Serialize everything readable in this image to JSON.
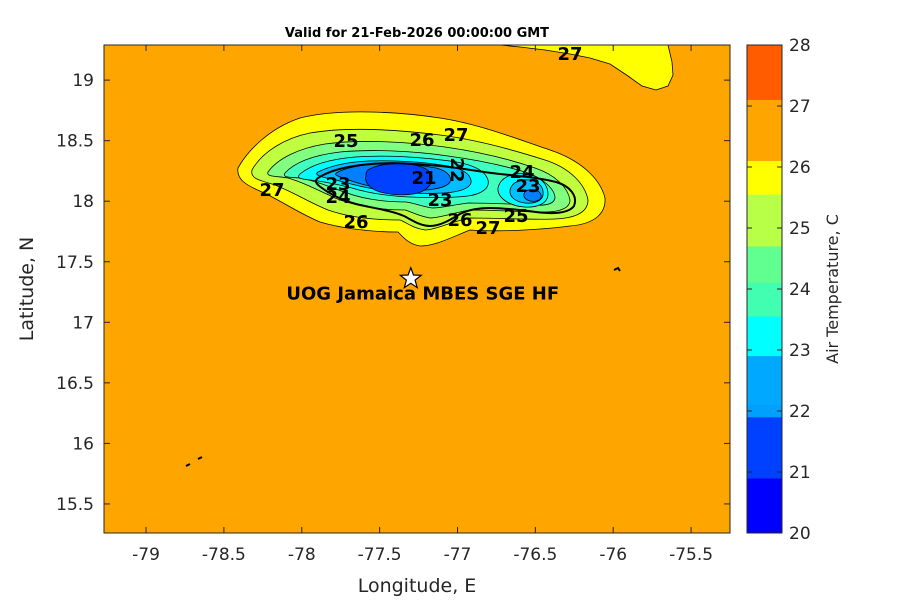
{
  "title": "Valid for 21-Feb-2026 00:00:00 GMT",
  "xlabel": "Longitude, E",
  "ylabel": "Latitude, N",
  "x_ticks": [
    "-79",
    "-78.5",
    "-78",
    "-77.5",
    "-77",
    "-76.5",
    "-76",
    "-75.5"
  ],
  "y_ticks": [
    "19",
    "18.5",
    "18",
    "17.5",
    "17",
    "16.5",
    "16",
    "15.5"
  ],
  "xlim": [
    -79.27,
    -75.25
  ],
  "ylim": [
    15.26,
    19.29
  ],
  "colorbar": {
    "label": "Air Temperature, C",
    "ticks": [
      "20",
      "21",
      "22",
      "23",
      "24",
      "25",
      "26",
      "27",
      "28"
    ],
    "range": [
      20,
      28
    ],
    "colors": [
      "#0000ff",
      "#0040ff",
      "#0080ff",
      "#00bfff",
      "#00ffff",
      "#40ffbf",
      "#80ff80",
      "#bfff40",
      "#ffff00",
      "#ffbf00",
      "#ff8000",
      "#ff4000",
      "#ff0000"
    ]
  },
  "station": {
    "label": "UOG Jamaica MBES SGE HF",
    "lon": -77.3,
    "lat": 17.36
  },
  "contour_labels": [
    "27",
    "25",
    "26",
    "27",
    "27",
    "23",
    "24",
    "21",
    "22",
    "24",
    "23",
    "23",
    "26",
    "26",
    "25",
    "27"
  ],
  "chart_data": {
    "type": "heatmap",
    "title": "Valid for 21-Feb-2026 00:00:00 GMT",
    "xlabel": "Longitude, E",
    "ylabel": "Latitude, N",
    "xlim": [
      -79.27,
      -75.25
    ],
    "ylim": [
      15.26,
      19.29
    ],
    "variable": "Air Temperature, C",
    "levels": [
      20,
      21,
      22,
      23,
      24,
      25,
      26,
      27,
      28
    ],
    "background_value": 26.5,
    "minimum_value": 21
  }
}
